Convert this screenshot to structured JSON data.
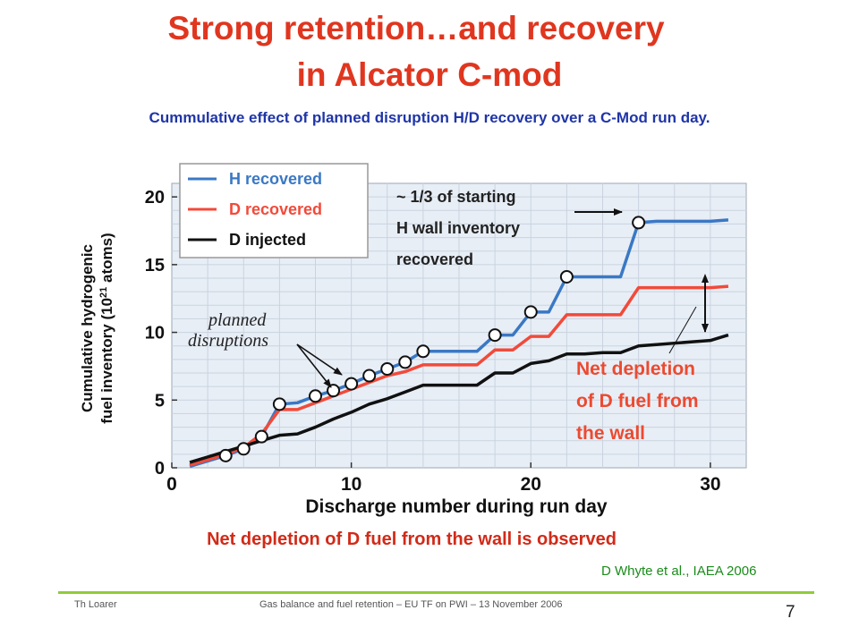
{
  "slide": {
    "title_line1": "Strong retention…and recovery",
    "title_line2": "in Alcator C-mod",
    "subtitle": "Cummulative effect of planned disruption H/D recovery over a C-Mod run day.",
    "caption": "Net depletion of D fuel from the wall is observed",
    "citation": "D Whyte et al., IAEA 2006",
    "footer_left": "Th Loarer",
    "footer_middle": "Gas balance and fuel retention – EU TF on PWI – 13 November 2006",
    "page_number": "7",
    "colors": {
      "title": "#e0361f",
      "subtitle": "#1f35a8",
      "caption": "#d22a18",
      "citation": "#1a8c1a",
      "footer_line": "#8fcc3a"
    }
  },
  "chart_data": {
    "type": "line",
    "xlabel": "Discharge number during run day",
    "ylabel": "Cumulative hydrogenic fuel inventory (10²¹ atoms)",
    "ylabel_line1": "Cumulative hydrogenic",
    "ylabel_line2": "fuel inventory (10",
    "ylabel_exp": "21",
    "ylabel_tail": " atoms)",
    "xlim": [
      0,
      32
    ],
    "ylim": [
      0,
      21
    ],
    "xticks": [
      0,
      10,
      20,
      30
    ],
    "xtick_labels": [
      "0",
      "10",
      "20",
      "30"
    ],
    "yticks": [
      0,
      5,
      10,
      15,
      20
    ],
    "ytick_labels": [
      "0",
      "5",
      "10",
      "15",
      "20"
    ],
    "grid": true,
    "legend_position": "top-left",
    "series": [
      {
        "name": "H recovered",
        "color": "#3a78c4",
        "x": [
          1,
          2,
          3,
          4,
          5,
          6,
          7,
          8,
          9,
          10,
          11,
          12,
          13,
          14,
          15,
          16,
          17,
          18,
          19,
          20,
          21,
          22,
          23,
          24,
          25,
          26,
          27,
          28,
          29,
          30,
          31
        ],
        "y": [
          0.1,
          0.5,
          0.9,
          1.4,
          2.3,
          4.7,
          4.8,
          5.3,
          5.7,
          6.2,
          6.8,
          7.3,
          7.8,
          8.6,
          8.6,
          8.6,
          8.6,
          9.8,
          9.8,
          11.5,
          11.5,
          14.1,
          14.1,
          14.1,
          14.1,
          18.1,
          18.2,
          18.2,
          18.2,
          18.2,
          18.3
        ]
      },
      {
        "name": "D recovered",
        "color": "#f24a3a",
        "x": [
          1,
          2,
          3,
          4,
          5,
          6,
          7,
          8,
          9,
          10,
          11,
          12,
          13,
          14,
          15,
          16,
          17,
          18,
          19,
          20,
          21,
          22,
          23,
          24,
          25,
          26,
          27,
          28,
          29,
          30,
          31
        ],
        "y": [
          0.2,
          0.6,
          1.0,
          1.5,
          2.5,
          4.3,
          4.3,
          4.8,
          5.3,
          5.8,
          6.3,
          6.8,
          7.1,
          7.6,
          7.6,
          7.6,
          7.6,
          8.7,
          8.7,
          9.7,
          9.7,
          11.3,
          11.3,
          11.3,
          11.3,
          13.3,
          13.3,
          13.3,
          13.3,
          13.3,
          13.4
        ]
      },
      {
        "name": "D injected",
        "color": "#111111",
        "x": [
          1,
          2,
          3,
          4,
          5,
          6,
          7,
          8,
          9,
          10,
          11,
          12,
          13,
          14,
          15,
          16,
          17,
          18,
          19,
          20,
          21,
          22,
          23,
          24,
          25,
          26,
          27,
          28,
          29,
          30,
          31
        ],
        "y": [
          0.4,
          0.8,
          1.2,
          1.6,
          2.0,
          2.4,
          2.5,
          3.0,
          3.6,
          4.1,
          4.7,
          5.1,
          5.6,
          6.1,
          6.1,
          6.1,
          6.1,
          7.0,
          7.0,
          7.7,
          7.9,
          8.4,
          8.4,
          8.5,
          8.5,
          9.0,
          9.1,
          9.2,
          9.3,
          9.4,
          9.8
        ]
      }
    ],
    "markers": {
      "label": "planned disruptions",
      "x": [
        3,
        4,
        5,
        6,
        8,
        9,
        10,
        11,
        12,
        13,
        14,
        18,
        20,
        22,
        26
      ],
      "y": [
        0.9,
        1.4,
        2.3,
        4.7,
        5.3,
        5.7,
        6.2,
        6.8,
        7.3,
        7.8,
        8.6,
        9.8,
        11.5,
        14.1,
        18.1
      ]
    },
    "annotations": {
      "planned_line1": "planned",
      "planned_line2": "disruptions",
      "recovered_line1": "~ 1/3 of starting",
      "recovered_line2": "H wall inventory",
      "recovered_line3": "recovered",
      "depletion_line1": "Net depletion",
      "depletion_line2": "of D fuel from",
      "depletion_line3": "the wall"
    }
  }
}
